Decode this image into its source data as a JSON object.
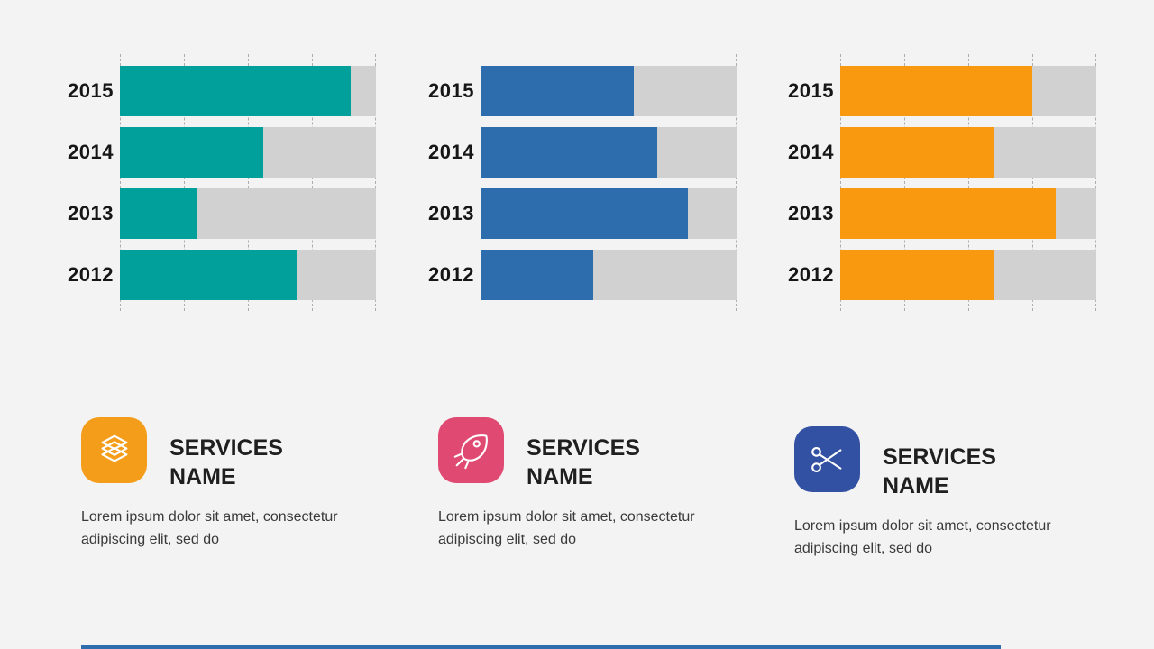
{
  "page": {
    "background_color": "#F3F3F3",
    "accent_line_color": "#2D6CAD"
  },
  "chart_data": [
    {
      "type": "bar",
      "orientation": "horizontal",
      "title": "",
      "xlabel": "",
      "ylabel": "",
      "categories": [
        "2015",
        "2014",
        "2013",
        "2012"
      ],
      "values": [
        90,
        56,
        30,
        69
      ],
      "xlim": [
        0,
        100
      ],
      "gridline_step_pct": 25,
      "grid": "dashed-vertical",
      "legend": "none",
      "bar_color": "#01A09A",
      "track_color": "#D1D1D1"
    },
    {
      "type": "bar",
      "orientation": "horizontal",
      "title": "",
      "xlabel": "",
      "ylabel": "",
      "categories": [
        "2015",
        "2014",
        "2013",
        "2012"
      ],
      "values": [
        60,
        69,
        81,
        44
      ],
      "xlim": [
        0,
        100
      ],
      "gridline_step_pct": 25,
      "grid": "dashed-vertical",
      "legend": "none",
      "bar_color": "#2D6CAD",
      "track_color": "#D1D1D1"
    },
    {
      "type": "bar",
      "orientation": "horizontal",
      "title": "",
      "xlabel": "",
      "ylabel": "",
      "categories": [
        "2015",
        "2014",
        "2013",
        "2012"
      ],
      "values": [
        75,
        60,
        84,
        60
      ],
      "xlim": [
        0,
        100
      ],
      "gridline_step_pct": 25,
      "grid": "dashed-vertical",
      "legend": "none",
      "bar_color": "#F8990F",
      "track_color": "#D1D1D1"
    }
  ],
  "services": [
    {
      "icon": "layers-icon",
      "icon_bg_color": "#F49D1A",
      "title": "SERVICES NAME",
      "description": "Lorem ipsum dolor sit amet, consectetur adipiscing elit, sed do"
    },
    {
      "icon": "rocket-icon",
      "icon_bg_color": "#E04A72",
      "title": "SERVICES NAME",
      "description": "Lorem ipsum dolor sit amet, consectetur adipiscing elit, sed do"
    },
    {
      "icon": "scissors-icon",
      "icon_bg_color": "#3351A2",
      "title": "SERVICES NAME",
      "description": "Lorem ipsum dolor sit amet, consectetur adipiscing elit, sed do"
    }
  ]
}
